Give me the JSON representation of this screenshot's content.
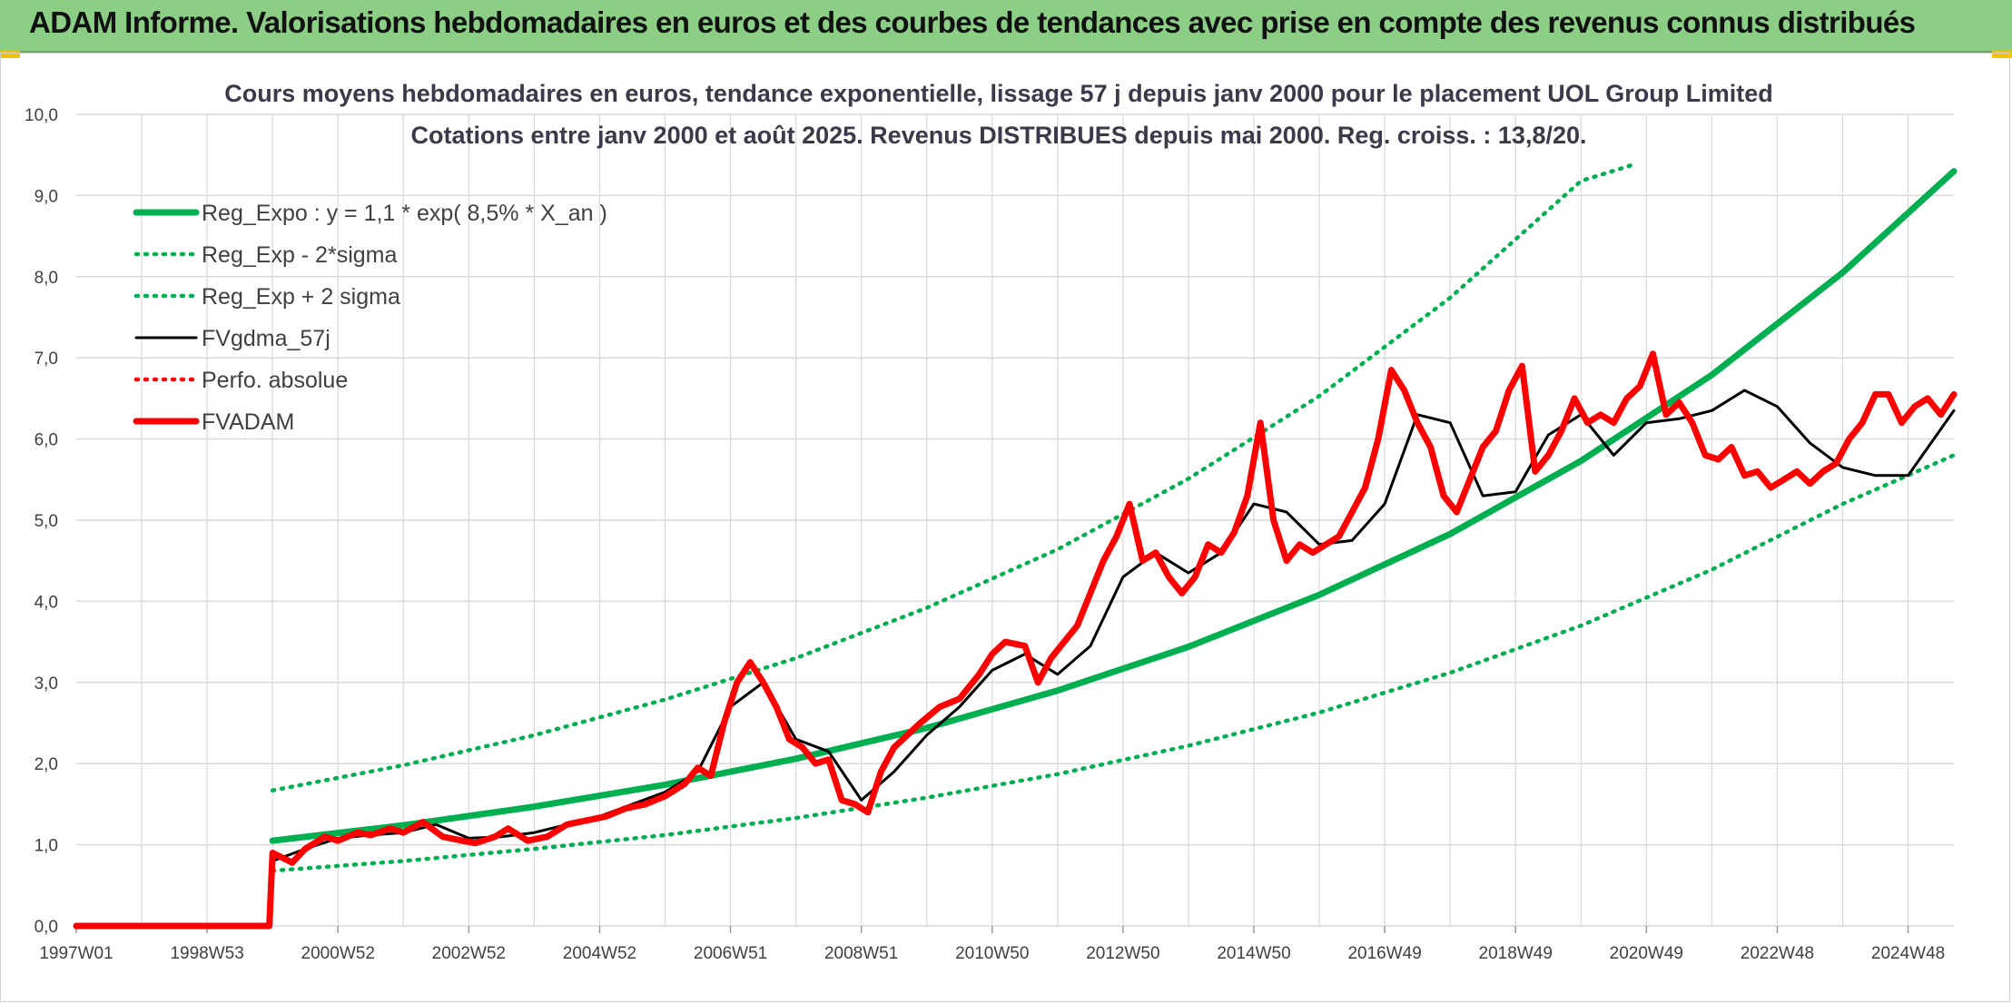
{
  "header": {
    "title": "ADAM Informe. Valorisations hebdomadaires en euros et des courbes de tendances avec prise en compte des revenus connus distribués"
  },
  "colors": {
    "header_bg": "#8cce86",
    "trend": "#00b050",
    "fvadam": "#ff0000",
    "smooth": "#000000",
    "perfo": "#ff0000",
    "grid": "#d9d9d9"
  },
  "chart_data": {
    "type": "line",
    "title": "Cours moyens hebdomadaires en euros, tendance exponentielle, lissage 57 j depuis janv 2000 pour le placement UOL Group Limited",
    "subtitle": "Cotations entre janv 2000 et août 2025. Revenus DISTRIBUES depuis mai 2000. Reg. croiss. : 13,8/20.",
    "xlabel": "",
    "ylabel": "",
    "ylim": [
      0,
      10
    ],
    "xlim": [
      1997.0,
      2025.7
    ],
    "y_ticks": [
      "0,0",
      "1,0",
      "2,0",
      "3,0",
      "4,0",
      "5,0",
      "6,0",
      "7,0",
      "8,0",
      "9,0",
      "10,0"
    ],
    "x_ticks": [
      {
        "label": "1997W01",
        "x": 1997.0
      },
      {
        "label": "1998W53",
        "x": 1999.0
      },
      {
        "label": "2000W52",
        "x": 2001.0
      },
      {
        "label": "2002W52",
        "x": 2003.0
      },
      {
        "label": "2004W52",
        "x": 2005.0
      },
      {
        "label": "2006W51",
        "x": 2007.0
      },
      {
        "label": "2008W51",
        "x": 2009.0
      },
      {
        "label": "2010W50",
        "x": 2011.0
      },
      {
        "label": "2012W50",
        "x": 2013.0
      },
      {
        "label": "2014W50",
        "x": 2015.0
      },
      {
        "label": "2016W49",
        "x": 2017.0
      },
      {
        "label": "2018W49",
        "x": 2019.0
      },
      {
        "label": "2020W49",
        "x": 2021.0
      },
      {
        "label": "2022W48",
        "x": 2023.0
      },
      {
        "label": "2024W48",
        "x": 2025.0
      }
    ],
    "grid": true,
    "legend_position": "top-left",
    "series": [
      {
        "name": "Reg_Expo : y = 1,1 * exp( 8,5% *  X_an )",
        "style": "solid-thick",
        "color": "#00b050",
        "x": [
          2000.0,
          2002.0,
          2004.0,
          2006.0,
          2008.0,
          2010.0,
          2012.0,
          2014.0,
          2016.0,
          2018.0,
          2020.0,
          2022.0,
          2024.0,
          2025.7
        ],
        "y": [
          1.05,
          1.24,
          1.47,
          1.74,
          2.06,
          2.44,
          2.9,
          3.44,
          4.08,
          4.83,
          5.73,
          6.79,
          8.05,
          9.3
        ]
      },
      {
        "name": "Reg_Exp - 2*sigma",
        "style": "dotted",
        "color": "#00b050",
        "x": [
          2000.0,
          2002.0,
          2004.0,
          2006.0,
          2008.0,
          2010.0,
          2012.0,
          2014.0,
          2016.0,
          2018.0,
          2020.0,
          2022.0,
          2024.0,
          2025.7
        ],
        "y": [
          0.68,
          0.8,
          0.95,
          1.12,
          1.33,
          1.58,
          1.87,
          2.22,
          2.63,
          3.12,
          3.7,
          4.39,
          5.2,
          5.8
        ]
      },
      {
        "name": "Reg_Exp + 2 sigma",
        "style": "dotted",
        "color": "#00b050",
        "x": [
          2000.0,
          2002.0,
          2004.0,
          2006.0,
          2008.0,
          2010.0,
          2012.0,
          2014.0,
          2016.0,
          2018.0,
          2020.0,
          2020.8
        ],
        "y": [
          1.67,
          1.98,
          2.35,
          2.79,
          3.3,
          3.92,
          4.64,
          5.51,
          6.53,
          7.74,
          9.18,
          9.38
        ]
      },
      {
        "name": "FVgdma_57j",
        "style": "solid",
        "color": "#000000",
        "x": [
          2000.0,
          2000.5,
          2001.0,
          2001.5,
          2002.0,
          2002.5,
          2003.0,
          2003.5,
          2004.0,
          2004.5,
          2005.0,
          2005.5,
          2006.0,
          2006.5,
          2007.0,
          2007.5,
          2008.0,
          2008.5,
          2009.0,
          2009.5,
          2010.0,
          2010.5,
          2011.0,
          2011.5,
          2012.0,
          2012.5,
          2013.0,
          2013.5,
          2014.0,
          2014.5,
          2015.0,
          2015.5,
          2016.0,
          2016.5,
          2017.0,
          2017.5,
          2018.0,
          2018.5,
          2019.0,
          2019.5,
          2020.0,
          2020.5,
          2021.0,
          2021.5,
          2022.0,
          2022.5,
          2023.0,
          2023.5,
          2024.0,
          2024.5,
          2025.0,
          2025.7
        ],
        "y": [
          0.8,
          0.95,
          1.08,
          1.12,
          1.15,
          1.25,
          1.08,
          1.1,
          1.15,
          1.25,
          1.35,
          1.5,
          1.65,
          1.9,
          2.7,
          3.0,
          2.3,
          2.15,
          1.55,
          1.9,
          2.35,
          2.7,
          3.15,
          3.35,
          3.1,
          3.45,
          4.3,
          4.6,
          4.35,
          4.6,
          5.2,
          5.1,
          4.7,
          4.75,
          5.2,
          6.3,
          6.2,
          5.3,
          5.35,
          6.05,
          6.3,
          5.8,
          6.2,
          6.25,
          6.35,
          6.6,
          6.4,
          5.95,
          5.65,
          5.55,
          5.55,
          6.35
        ]
      },
      {
        "name": "Perfo. absolue",
        "style": "dotted",
        "color": "#ff0000",
        "x": [],
        "y": []
      },
      {
        "name": "FVADAM",
        "style": "solid-thick",
        "color": "#ff0000",
        "x": [
          1997.0,
          1999.5,
          1999.95,
          2000.0,
          2000.3,
          2000.5,
          2000.8,
          2001.0,
          2001.3,
          2001.5,
          2001.8,
          2002.0,
          2002.3,
          2002.6,
          2002.9,
          2003.1,
          2003.4,
          2003.6,
          2003.9,
          2004.2,
          2004.5,
          2004.8,
          2005.1,
          2005.4,
          2005.7,
          2006.0,
          2006.3,
          2006.5,
          2006.7,
          2006.9,
          2007.1,
          2007.3,
          2007.5,
          2007.7,
          2007.9,
          2008.1,
          2008.3,
          2008.5,
          2008.7,
          2008.9,
          2009.1,
          2009.3,
          2009.5,
          2009.7,
          2009.9,
          2010.2,
          2010.5,
          2010.8,
          2011.0,
          2011.2,
          2011.5,
          2011.7,
          2011.9,
          2012.1,
          2012.3,
          2012.5,
          2012.7,
          2012.9,
          2013.1,
          2013.3,
          2013.5,
          2013.7,
          2013.9,
          2014.1,
          2014.3,
          2014.5,
          2014.7,
          2014.9,
          2015.1,
          2015.3,
          2015.5,
          2015.7,
          2015.9,
          2016.1,
          2016.3,
          2016.5,
          2016.7,
          2016.9,
          2017.1,
          2017.3,
          2017.5,
          2017.7,
          2017.9,
          2018.1,
          2018.3,
          2018.5,
          2018.7,
          2018.9,
          2019.1,
          2019.3,
          2019.5,
          2019.7,
          2019.9,
          2020.1,
          2020.3,
          2020.5,
          2020.7,
          2020.9,
          2021.1,
          2021.3,
          2021.5,
          2021.7,
          2021.9,
          2022.1,
          2022.3,
          2022.5,
          2022.7,
          2022.9,
          2023.1,
          2023.3,
          2023.5,
          2023.7,
          2023.9,
          2024.1,
          2024.3,
          2024.5,
          2024.7,
          2024.9,
          2025.1,
          2025.3,
          2025.5,
          2025.7
        ],
        "y": [
          0.0,
          0.0,
          0.0,
          0.9,
          0.78,
          0.95,
          1.1,
          1.05,
          1.15,
          1.12,
          1.2,
          1.15,
          1.28,
          1.1,
          1.05,
          1.02,
          1.1,
          1.2,
          1.05,
          1.1,
          1.25,
          1.3,
          1.35,
          1.45,
          1.5,
          1.6,
          1.75,
          1.95,
          1.85,
          2.5,
          3.0,
          3.25,
          3.0,
          2.7,
          2.3,
          2.2,
          2.0,
          2.05,
          1.55,
          1.5,
          1.4,
          1.9,
          2.2,
          2.35,
          2.5,
          2.7,
          2.8,
          3.1,
          3.35,
          3.5,
          3.45,
          3.0,
          3.3,
          3.5,
          3.7,
          4.1,
          4.5,
          4.8,
          5.2,
          4.5,
          4.6,
          4.3,
          4.1,
          4.3,
          4.7,
          4.6,
          4.85,
          5.3,
          6.2,
          5.0,
          4.5,
          4.7,
          4.6,
          4.7,
          4.8,
          5.1,
          5.4,
          6.0,
          6.85,
          6.6,
          6.2,
          5.9,
          5.3,
          5.1,
          5.5,
          5.9,
          6.1,
          6.6,
          6.9,
          5.6,
          5.8,
          6.1,
          6.5,
          6.2,
          6.3,
          6.2,
          6.5,
          6.65,
          7.05,
          6.3,
          6.45,
          6.2,
          5.8,
          5.75,
          5.9,
          5.55,
          5.6,
          5.4,
          5.5,
          5.6,
          5.45,
          5.6,
          5.7,
          6.0,
          6.2,
          6.55,
          6.55,
          6.2,
          6.4,
          6.5,
          6.3,
          6.55
        ]
      }
    ]
  }
}
